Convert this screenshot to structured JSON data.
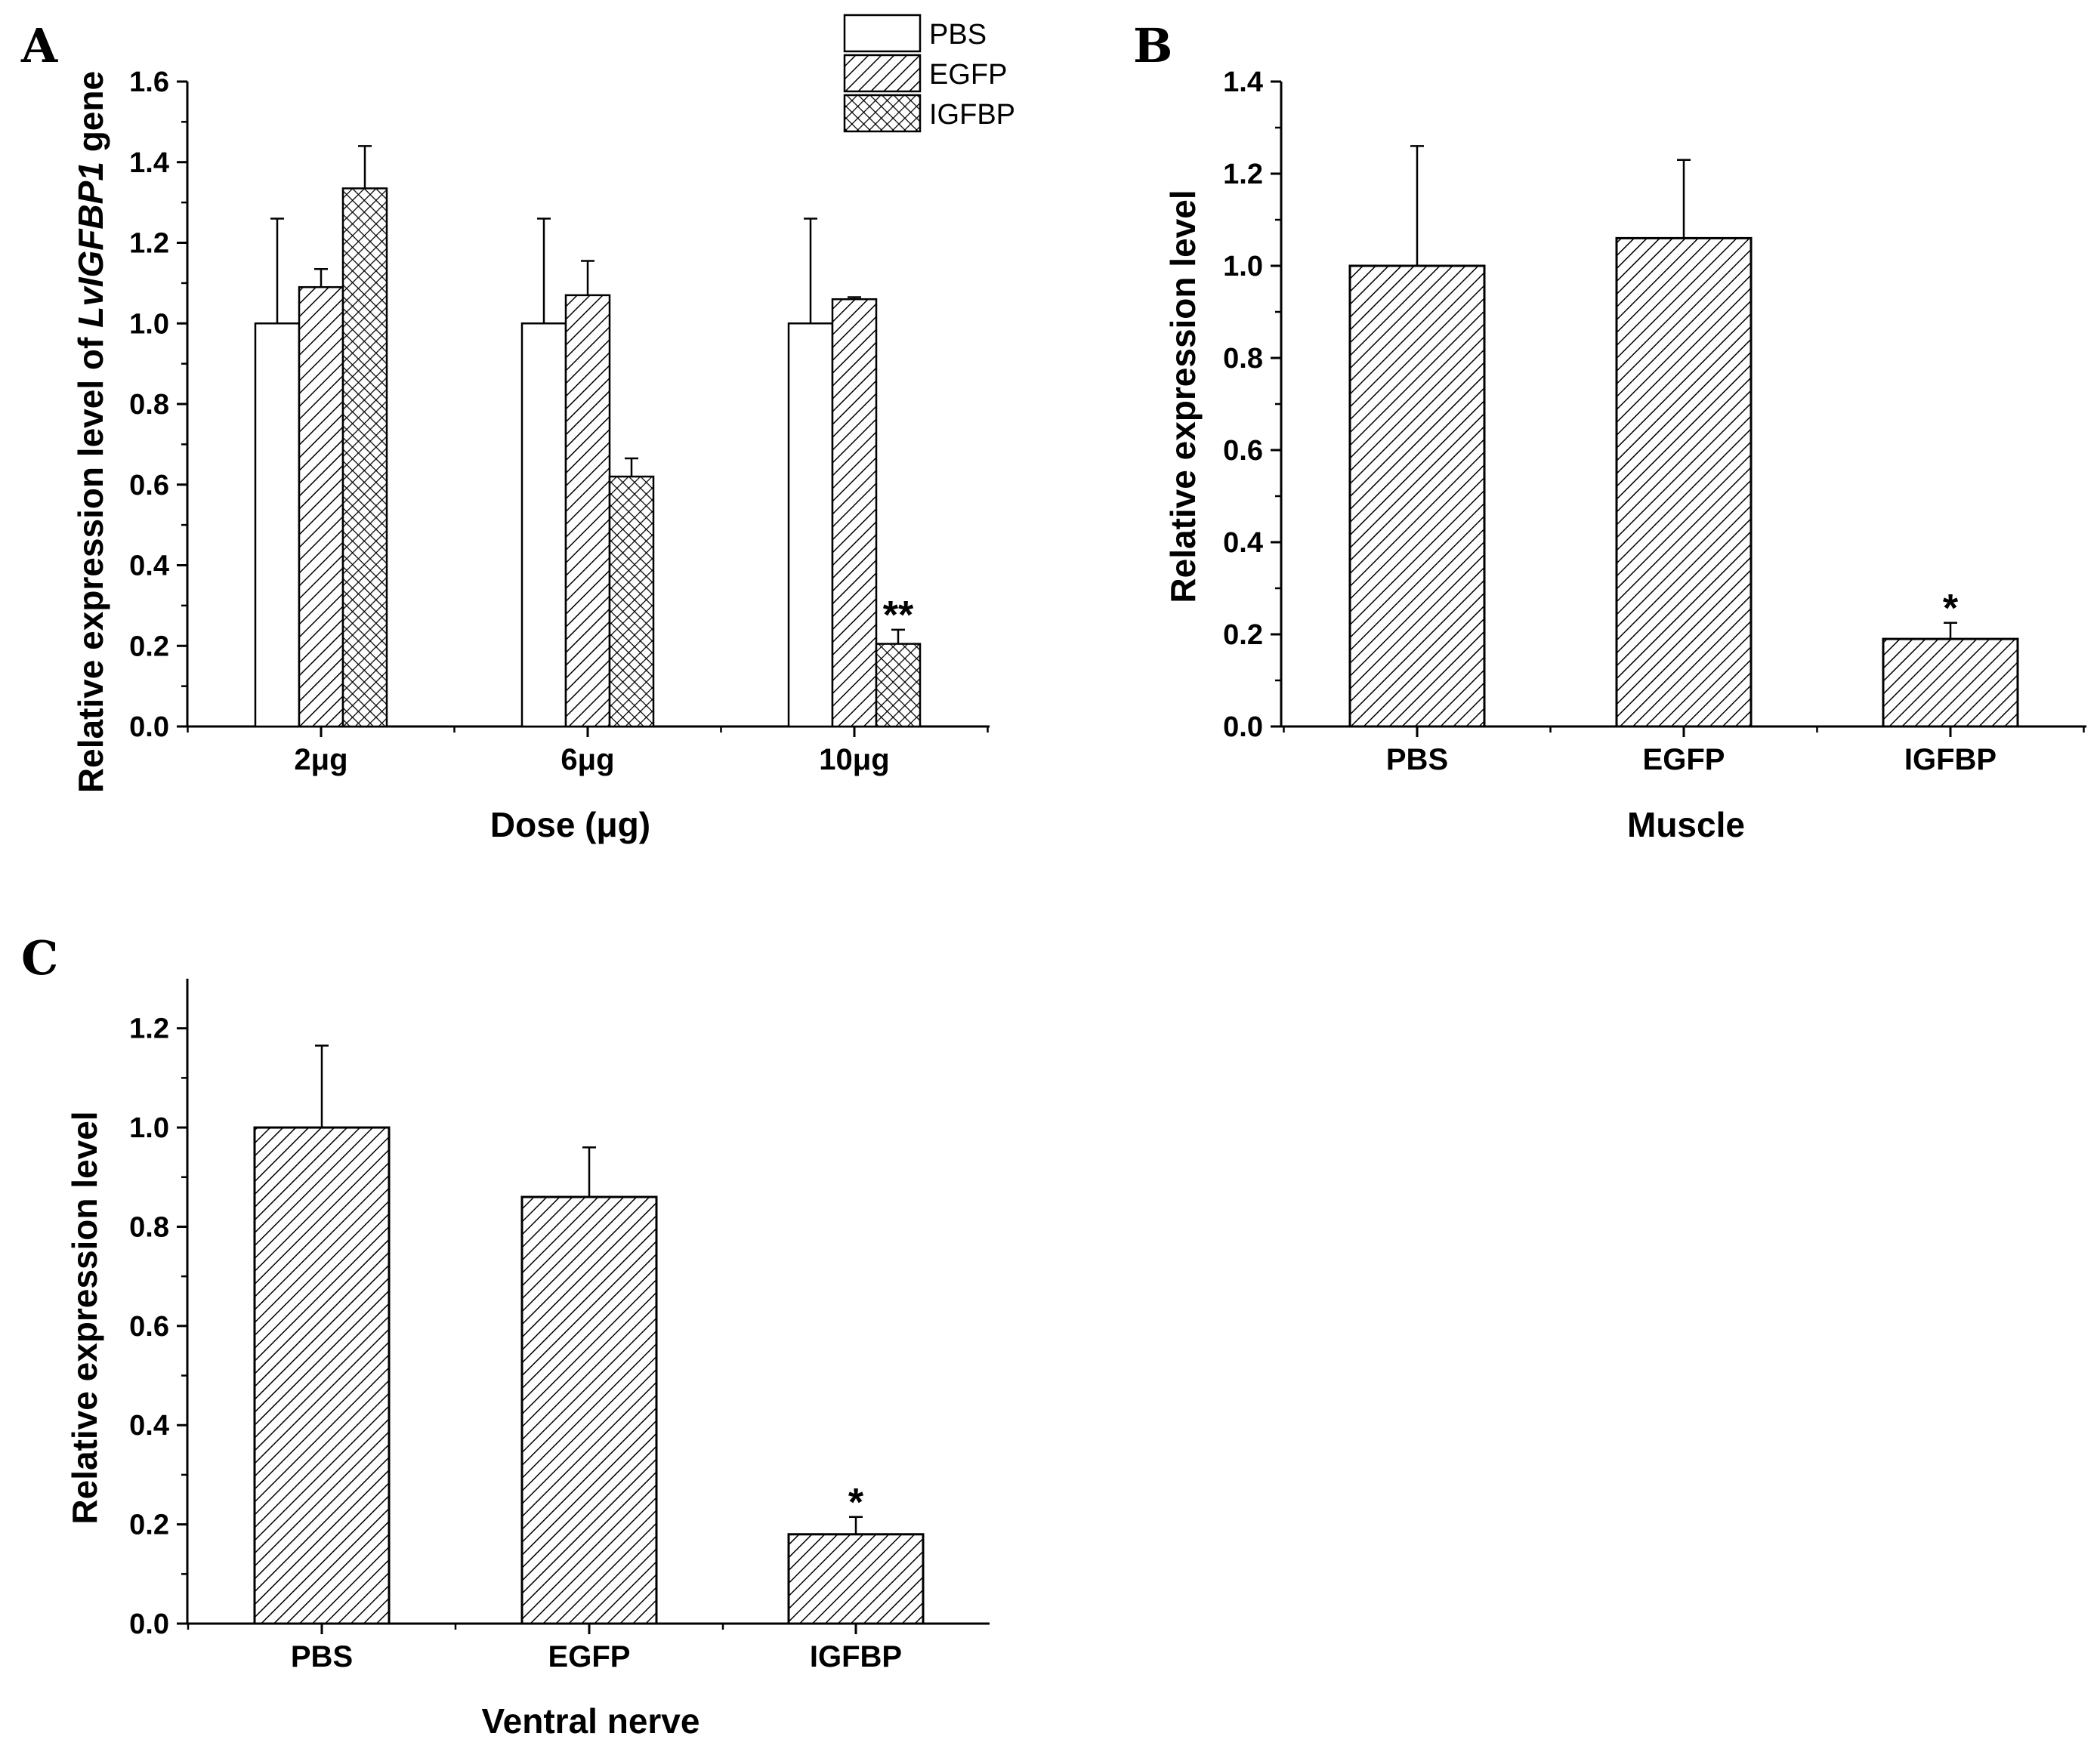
{
  "colors": {
    "ink": "#000000",
    "background": "#ffffff"
  },
  "chart_data": [
    {
      "panel": "A",
      "type": "bar",
      "xlabel": "Dose (μg)",
      "ylabel_parts": [
        "Relative expression level of ",
        "LvIGFBP1",
        " gene"
      ],
      "categories": [
        "2μg",
        "6μg",
        "10μg"
      ],
      "ylim": [
        0,
        1.6
      ],
      "yticks": [
        0.0,
        0.2,
        0.4,
        0.6,
        0.8,
        1.0,
        1.2,
        1.4,
        1.6
      ],
      "legend_position": "top-right",
      "series": [
        {
          "name": "PBS",
          "pattern": "none",
          "values": [
            1.0,
            1.0,
            1.0
          ],
          "errors": [
            0.26,
            0.26,
            0.26
          ],
          "annotations": [
            "",
            "",
            ""
          ]
        },
        {
          "name": "EGFP",
          "pattern": "diagonal",
          "values": [
            1.09,
            1.07,
            1.06
          ],
          "errors": [
            0.045,
            0.085,
            0.005
          ],
          "annotations": [
            "",
            "",
            ""
          ]
        },
        {
          "name": "IGFBP",
          "pattern": "crosshatch",
          "values": [
            1.335,
            0.62,
            0.205
          ],
          "errors": [
            0.105,
            0.045,
            0.035
          ],
          "annotations": [
            "",
            "",
            "**"
          ]
        }
      ]
    },
    {
      "panel": "B",
      "type": "bar",
      "xlabel": "Muscle",
      "ylabel": "Relative expression level",
      "categories": [
        "PBS",
        "EGFP",
        "IGFBP"
      ],
      "ylim": [
        0,
        1.4
      ],
      "yticks": [
        0.0,
        0.2,
        0.4,
        0.6,
        0.8,
        1.0,
        1.2,
        1.4
      ],
      "values": [
        1.0,
        1.06,
        0.19
      ],
      "errors": [
        0.26,
        0.17,
        0.035
      ],
      "annotations": [
        "",
        "",
        "*"
      ],
      "pattern": "diagonal"
    },
    {
      "panel": "C",
      "type": "bar",
      "xlabel": "Ventral nerve",
      "ylabel": "Relative expression level",
      "categories": [
        "PBS",
        "EGFP",
        "IGFBP"
      ],
      "ylim": [
        0,
        1.3
      ],
      "yticks": [
        0.0,
        0.2,
        0.4,
        0.6,
        0.8,
        1.0,
        1.2
      ],
      "values": [
        1.0,
        0.86,
        0.18
      ],
      "errors": [
        0.165,
        0.1,
        0.035
      ],
      "annotations": [
        "",
        "",
        "*"
      ],
      "pattern": "diagonal"
    }
  ]
}
